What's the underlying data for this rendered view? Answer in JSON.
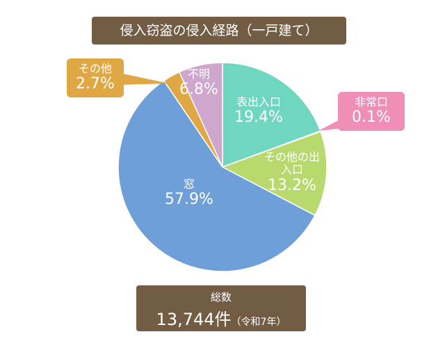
{
  "chart_data": {
    "type": "pie",
    "title": "侵入窃盗の侵入経路（一戸建て）",
    "categories": [
      "表出入口",
      "非常口",
      "その他の出入口",
      "窓",
      "その他",
      "不明"
    ],
    "values": [
      19.4,
      0.1,
      13.2,
      57.9,
      2.7,
      6.8
    ],
    "value_labels": [
      "19.4%",
      "0.1%",
      "13.2%",
      "57.9%",
      "2.7%",
      "6.8%"
    ],
    "colors": [
      "#6fd6bf",
      "#ef8fb6",
      "#b7d96e",
      "#6f9fd8",
      "#e0a845",
      "#cfa6cd"
    ],
    "total": {
      "label": "総数",
      "value": "13,744件",
      "note": "（令和7年）"
    }
  }
}
